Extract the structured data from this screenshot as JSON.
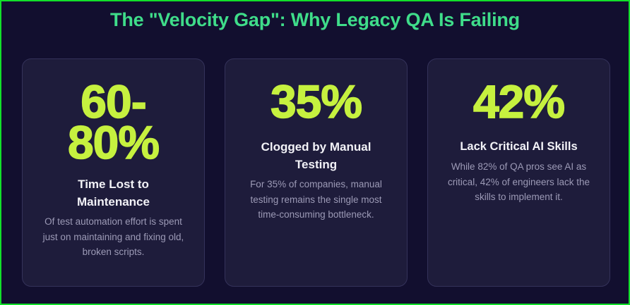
{
  "title": "The \"Velocity Gap\": Why Legacy QA Is Failing",
  "colors": {
    "background": "#120f2f",
    "frame_border": "#12e02a",
    "title": "#3fdd8a",
    "card_background": "#1e1c3b",
    "card_border": "#34325a",
    "stat": "#c6f13f",
    "heading": "#f2f2f7",
    "description": "#9c9ab6"
  },
  "cards": [
    {
      "stat": "60-80%",
      "heading": "Time Lost to Maintenance",
      "description": "Of test automation effort is spent just on maintaining and fixing old, broken scripts."
    },
    {
      "stat": "35%",
      "heading": "Clogged by Manual Testing",
      "description": "For 35% of companies, manual testing remains the single most time-consuming bottleneck."
    },
    {
      "stat": "42%",
      "heading": "Lack Critical AI Skills",
      "description": "While 82% of QA pros see AI as critical, 42% of engineers lack the skills to implement it."
    }
  ]
}
